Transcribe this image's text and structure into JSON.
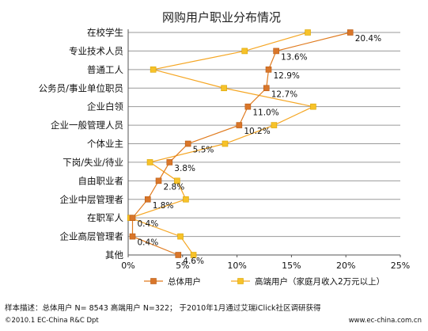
{
  "chart_data": {
    "type": "line",
    "title": "网购用户职业分布情况",
    "orientation": "horizontal",
    "categories": [
      "在校学生",
      "专业技术人员",
      "普通工人",
      "公务员/事业单位职员",
      "企业白领",
      "企业一般管理人员",
      "个体业主",
      "下岗/失业/待业",
      "自由职业者",
      "企业中层管理者",
      "在职军人",
      "企业高层管理者",
      "其他"
    ],
    "series": [
      {
        "name": "总体用户",
        "color": "#e07b1f",
        "marker": "#d9762a",
        "values": [
          20.4,
          13.6,
          12.9,
          12.7,
          11.0,
          10.2,
          5.5,
          3.8,
          2.8,
          1.8,
          0.4,
          0.4,
          4.6
        ],
        "labels": [
          "20.4%",
          "13.6%",
          "12.9%",
          "12.7%",
          "11.0%",
          "10.2%",
          "5.5%",
          "3.8%",
          "2.8%",
          "1.8%",
          "0.4%",
          "0.4%",
          "4.6%"
        ]
      },
      {
        "name": "高端用户（家庭月收入2万元以上）",
        "color": "#f5a623",
        "marker": "#f7c229",
        "values": [
          16.5,
          10.7,
          2.3,
          8.8,
          17.0,
          13.4,
          8.9,
          2.0,
          4.5,
          5.3,
          0.2,
          4.8,
          6.0
        ],
        "labels": []
      }
    ],
    "xlim": [
      0,
      25
    ],
    "xticks": [
      0,
      5,
      10,
      15,
      20,
      25
    ],
    "xtick_labels": [
      "0%",
      "5%",
      "10%",
      "15%",
      "20%",
      "25%"
    ],
    "grid": "horizontal",
    "legend_position": "bottom"
  },
  "footer": {
    "note": "样本描述：总体用户 N= 8543  高端用户 N=322；  于2010年1月通过艾瑞iClick社区调研获得",
    "copyright": "©2010.1 EC-China R&C Dpt",
    "site": "www.ec-china.com.cn"
  }
}
